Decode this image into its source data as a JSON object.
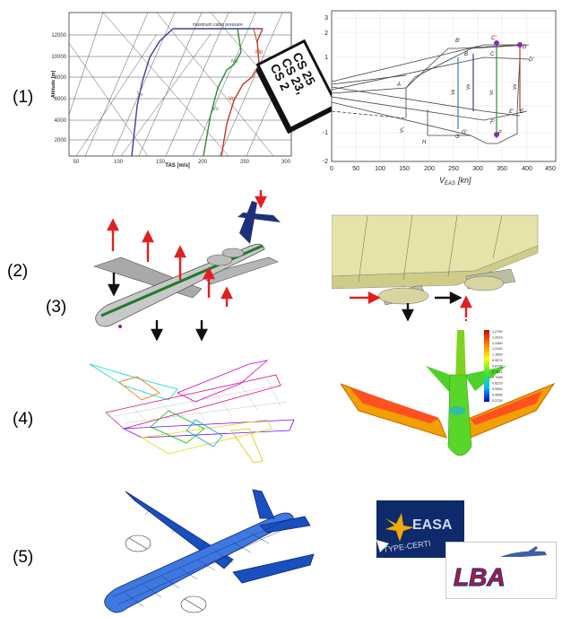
{
  "steps": {
    "s1": "(1)",
    "s2": "(2)",
    "s3": "(3)",
    "s4": "(4)",
    "s5": "(5)"
  },
  "chart_altitude": {
    "ylabel": "Altitude [m]",
    "xlabel": "TAS [m/s]",
    "note": "maximum cabin pressure",
    "xticks": [
      "50",
      "100",
      "150",
      "200",
      "250",
      "300"
    ],
    "yticks": [
      "2000",
      "4000",
      "6000",
      "8000",
      "10000",
      "12000"
    ],
    "curve_labels": {
      "va": "Vₐ",
      "vc": "Vᴄ",
      "vd": "Vᴅ",
      "mc": "Mᴄ",
      "md": "Mᴅ"
    }
  },
  "book": {
    "lines": [
      "CS 25",
      "CS 23,",
      "CS 2"
    ]
  },
  "chart_vn": {
    "xlabel": "V",
    "xlabel_sub": "EAS",
    "xlabel_unit": "[kn]",
    "xticks": [
      "0",
      "50",
      "100",
      "150",
      "200",
      "250",
      "300",
      "350",
      "400",
      "450"
    ],
    "yticks": [
      "3",
      "2",
      "1",
      "-1",
      "-2"
    ],
    "point_labels": [
      "B′",
      "C′",
      "D",
      "B",
      "C",
      "A",
      "F",
      "G′",
      "F′",
      "H",
      "G",
      "E",
      "E′",
      "D′"
    ],
    "vlines": [
      "Vʙ",
      "Vᴄ",
      "Vᴅ",
      "Vʙ",
      "Vˢ₁"
    ]
  },
  "legend_ticks": [
    "1.2750",
    "1.2619",
    "1.2480",
    "1.2240",
    "1.1850",
    "0.9574",
    "0.8738",
    "0.7851",
    "0.7065",
    "0.6229",
    "0.5562",
    "0.4656",
    "0.3720"
  ],
  "logos": {
    "easa": "EASA",
    "easa_sub": "TYPE-CERTI",
    "lba": "LBA"
  }
}
